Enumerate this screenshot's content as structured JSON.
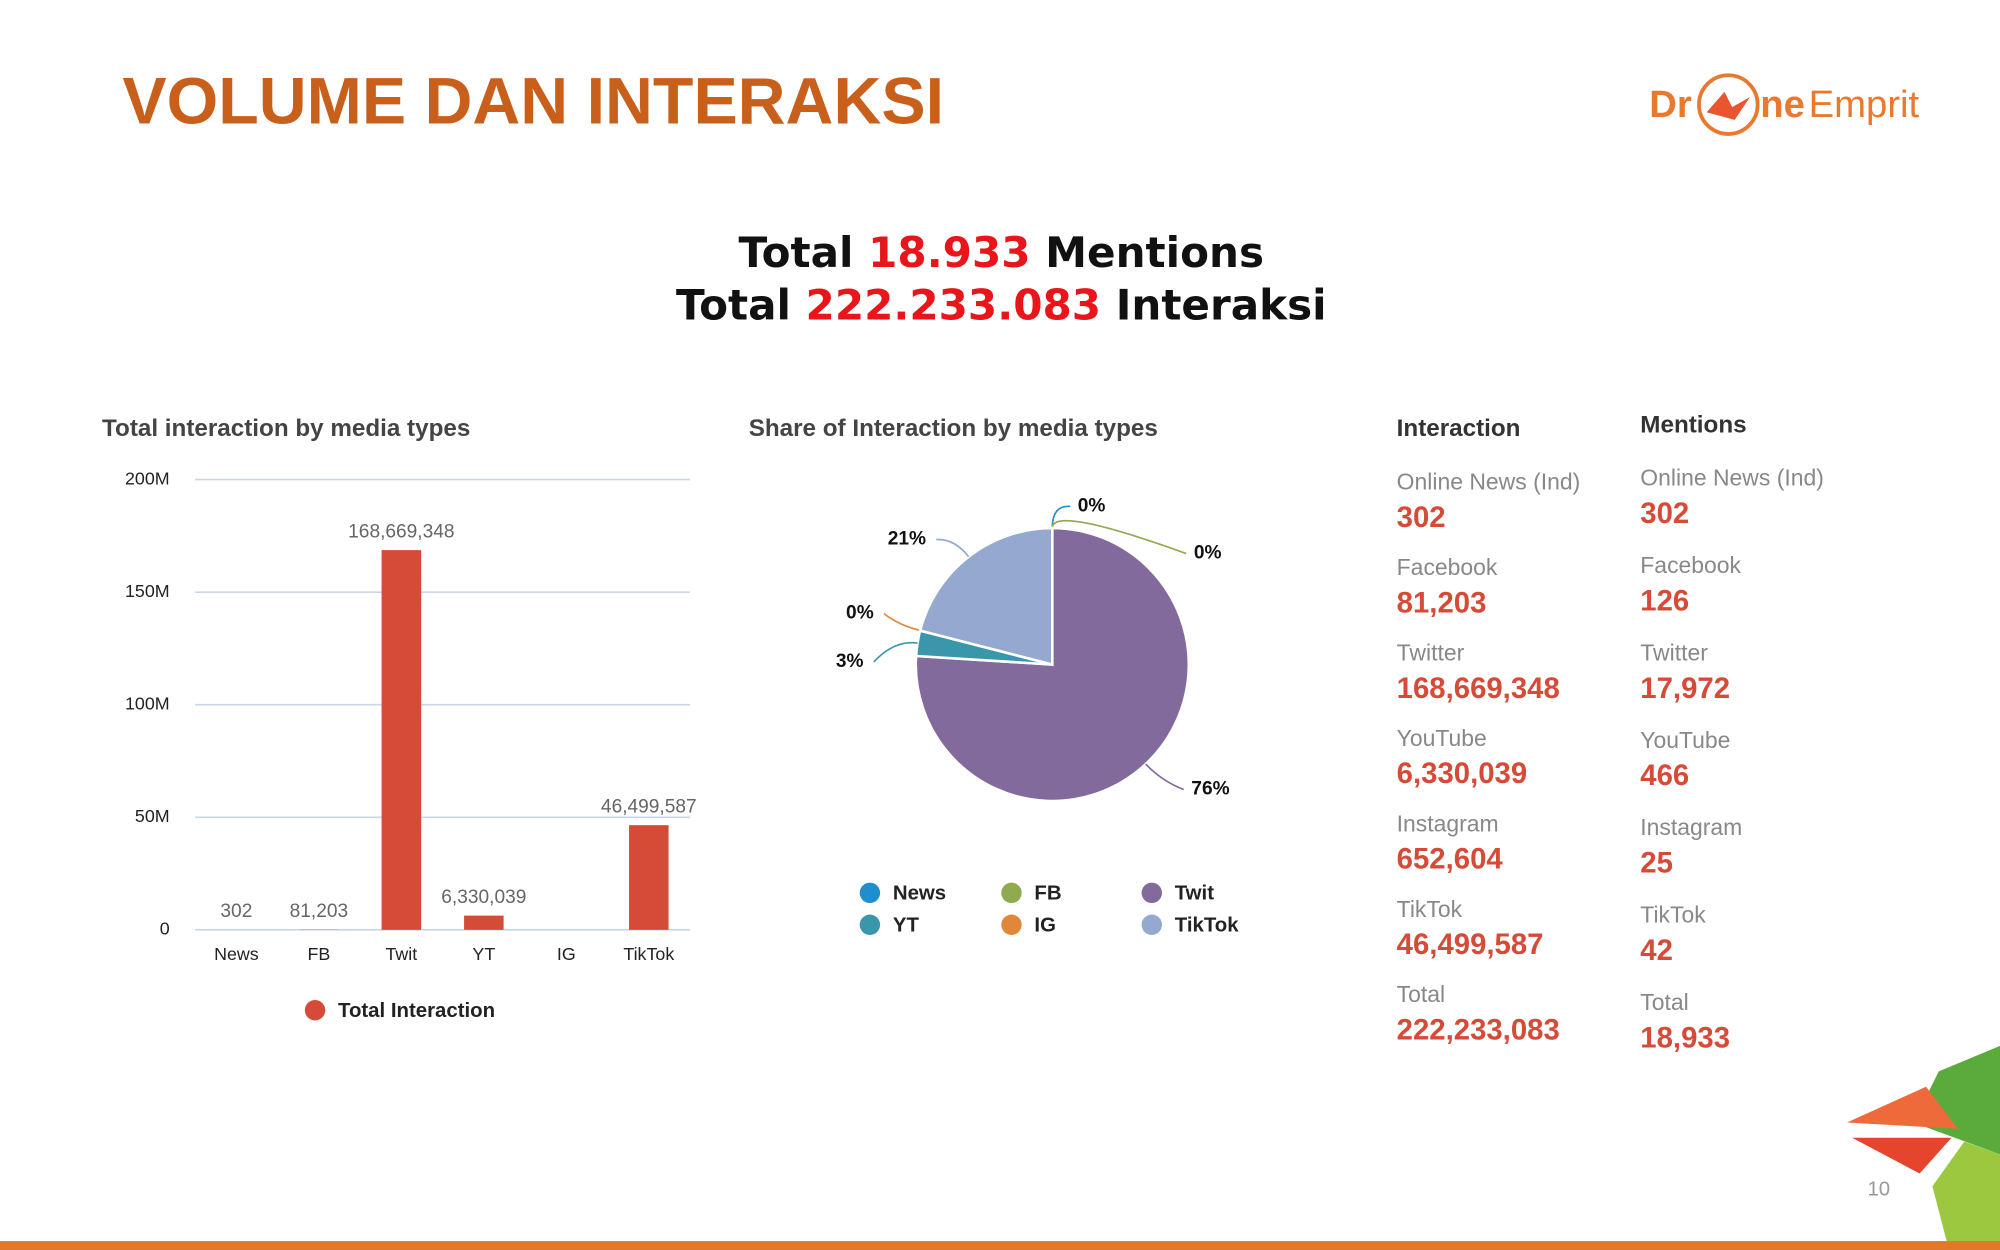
{
  "header": {
    "title": "VOLUME DAN INTERAKSI",
    "logo": [
      "Dr",
      "ne",
      "Emprit"
    ]
  },
  "summary": [
    {
      "pre": "Total",
      "value": "18.933",
      "post": "Mentions"
    },
    {
      "pre": "Total",
      "value": "222.233.083",
      "post": "Interaksi"
    }
  ],
  "chart_data": [
    {
      "type": "bar",
      "title": "Total interaction by media types",
      "categories": [
        "News",
        "FB",
        "Twit",
        "YT",
        "IG",
        "TikTok"
      ],
      "series": [
        {
          "name": "Total Interaction",
          "color": "#d64b38",
          "values": [
            302,
            81203,
            168669348,
            6330039,
            null,
            46499587
          ],
          "value_labels": [
            "302",
            "81,203",
            "168,669,348",
            "6,330,039",
            null,
            "46,499,587"
          ]
        }
      ],
      "ylim": [
        0,
        200000000
      ],
      "yticks": [
        0,
        {
          "value": 50000000,
          "label": "50M"
        },
        {
          "value": 100000000,
          "label": "100M"
        },
        {
          "value": 150000000,
          "label": "150M"
        },
        {
          "value": 200000000,
          "label": "200M"
        }
      ],
      "grid": true
    },
    {
      "type": "pie",
      "title": "Share of Interaction by media types",
      "categories": [
        "News",
        "FB",
        "Twit",
        "YT",
        "IG",
        "TikTok"
      ],
      "values": [
        0,
        0,
        76,
        3,
        0,
        21
      ],
      "value_labels": [
        "0%",
        "0%",
        "76%",
        "3%",
        "0%",
        "21%"
      ],
      "colors": [
        "#1f8ecd",
        "#8faa4f",
        "#826a9c",
        "#3a97ab",
        "#e0883a",
        "#94a8d0"
      ]
    }
  ],
  "interaction": {
    "title": "Interaction",
    "items": [
      {
        "label": "Online News (Ind)",
        "value": "302"
      },
      {
        "label": "Facebook",
        "value": "81,203"
      },
      {
        "label": "Twitter",
        "value": "168,669,348"
      },
      {
        "label": "YouTube",
        "value": "6,330,039"
      },
      {
        "label": "Instagram",
        "value": "652,604"
      },
      {
        "label": "TikTok",
        "value": "46,499,587"
      },
      {
        "label": "Total",
        "value": "222,233,083"
      }
    ]
  },
  "mentions": {
    "title": "Mentions",
    "items": [
      {
        "label": "Online News (Ind)",
        "value": "302"
      },
      {
        "label": "Facebook",
        "value": "126"
      },
      {
        "label": "Twitter",
        "value": "17,972"
      },
      {
        "label": "YouTube",
        "value": "466"
      },
      {
        "label": "Instagram",
        "value": "25"
      },
      {
        "label": "TikTok",
        "value": "42"
      },
      {
        "label": "Total",
        "value": "18,933"
      }
    ]
  },
  "page_number": "10"
}
